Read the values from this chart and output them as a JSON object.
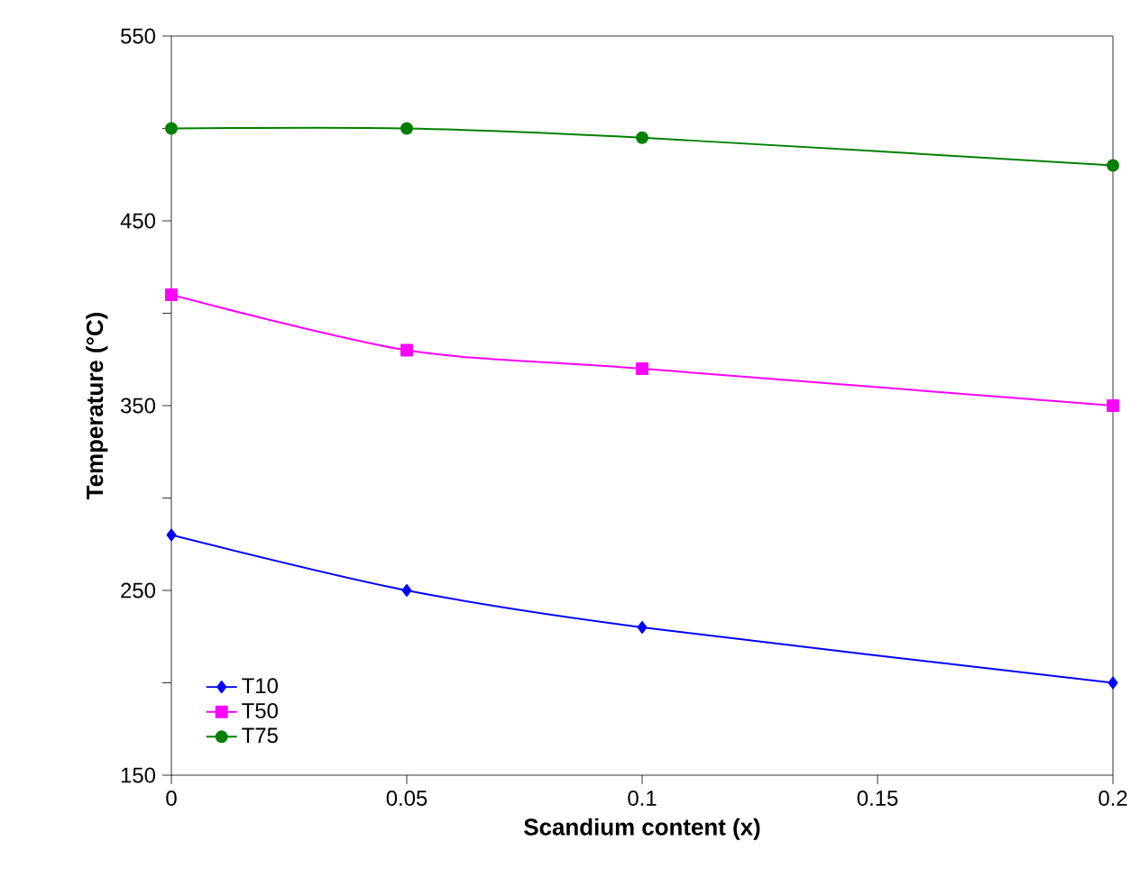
{
  "chart_data": {
    "type": "line",
    "xlabel": "Scandium content (x)",
    "ylabel": "Temperature (°C)",
    "x": [
      0,
      0.05,
      0.1,
      0.2
    ],
    "series": [
      {
        "name": "T10",
        "color": "#0000ff",
        "marker": "diamond",
        "values": [
          280,
          250,
          230,
          200
        ]
      },
      {
        "name": "T50",
        "color": "#ff00ff",
        "marker": "square",
        "values": [
          410,
          380,
          370,
          350
        ]
      },
      {
        "name": "T75",
        "color": "#008000",
        "marker": "circle",
        "values": [
          500,
          500,
          495,
          480
        ]
      }
    ],
    "xlim": [
      0,
      0.2
    ],
    "xticks": [
      0,
      0.05,
      0.1,
      0.15,
      0.2
    ],
    "ylim": [
      150,
      550
    ],
    "yticks": [
      150,
      {
        "value": 200,
        "label": null
      },
      250,
      {
        "value": 300,
        "label": null
      },
      350,
      {
        "value": 400,
        "label": null
      },
      450,
      {
        "value": 500,
        "label": null
      },
      550
    ],
    "legend": "bottom left",
    "grid": false,
    "line_style": "solid"
  }
}
